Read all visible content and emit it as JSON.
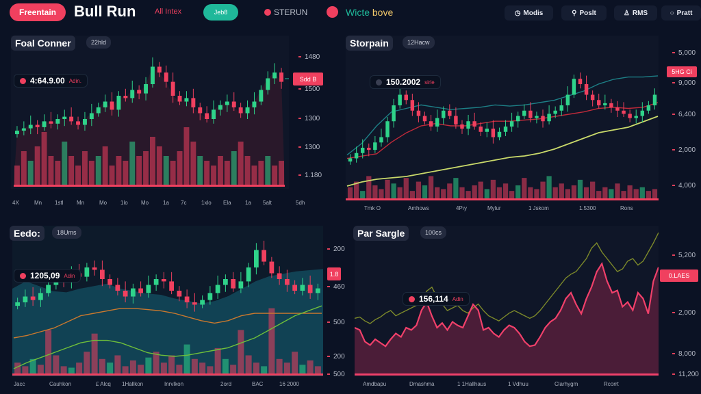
{
  "header": {
    "brand_pill": "Freentain",
    "title": "Bull Run",
    "subtitle": "All Intex",
    "teal_pill": "Jeb8",
    "ticker1": "STERUN",
    "ticker2_a": "Wicte",
    "ticker2_b": "bove",
    "nav": [
      {
        "icon": "clock-icon",
        "label": "Modis"
      },
      {
        "icon": "link-icon",
        "label": "Poslt"
      },
      {
        "icon": "user-icon",
        "label": "RMS"
      },
      {
        "icon": "circle-icon",
        "label": "Pratt"
      }
    ]
  },
  "colors": {
    "up": "#2fd38a",
    "down": "#f0405f",
    "accent_pink": "#f0405f",
    "teal": "#1fb89a",
    "bg": "#0b1224"
  },
  "panels": [
    {
      "title": "Foal Conner",
      "tag": "22hld",
      "info_value": "4:64.9.00",
      "info_sub": "Adin.",
      "price_tag": "Sdd B",
      "y_labels": [
        "1480",
        "1500",
        "1300",
        "1300",
        "1.180"
      ],
      "x_labels": [
        "4X",
        "Mn",
        "1stl",
        "Mn",
        "Mo",
        "1lo",
        "Mo",
        "1a",
        "7c",
        "1xlo",
        "Ela",
        "1a",
        "5alt",
        "5dh"
      ],
      "chart_data": {
        "type": "candlestick",
        "ylim": [
          0,
          100
        ],
        "closes": [
          30,
          32,
          35,
          33,
          38,
          36,
          40,
          42,
          38,
          35,
          40,
          45,
          50,
          55,
          48,
          60,
          58,
          65,
          62,
          70,
          85,
          80,
          72,
          60,
          55,
          58,
          50,
          45,
          40,
          48,
          52,
          55,
          50,
          45,
          50,
          55,
          65,
          75,
          80,
          72
        ],
        "volumes": [
          20,
          35,
          25,
          40,
          55,
          30,
          25,
          45,
          30,
          20,
          35,
          25,
          30,
          40,
          20,
          30,
          25,
          45,
          30,
          35,
          50,
          40,
          30,
          25,
          35,
          60,
          45,
          30,
          25,
          20,
          30,
          25,
          35,
          45,
          30,
          20,
          25,
          30,
          20,
          25
        ]
      }
    },
    {
      "title": "Storpain",
      "tag": "12Hacw",
      "info_value": "150.2002",
      "info_sub": "sirle",
      "price_tag": "5HG Ci",
      "y_labels": [
        "5,000",
        "9,000",
        "6,400",
        "2,000",
        "4,000"
      ],
      "x_labels": [
        "Tmk O",
        "Amhows",
        "4Pıy",
        "Mylur",
        "1 Jskom",
        "1.5300",
        "Rons"
      ],
      "chart_data": {
        "type": "candlestick",
        "ylim": [
          0,
          100
        ],
        "closes": [
          10,
          15,
          20,
          18,
          25,
          30,
          45,
          60,
          70,
          65,
          55,
          50,
          45,
          40,
          48,
          55,
          50,
          42,
          38,
          45,
          40,
          35,
          38,
          30,
          35,
          40,
          45,
          50,
          55,
          48,
          50,
          45,
          52,
          55,
          60,
          70,
          85,
          80,
          70,
          65,
          60,
          62,
          58,
          55,
          52,
          48,
          50,
          55,
          60,
          70
        ],
        "ma_fast": [
          15,
          25,
          40,
          52,
          55,
          58,
          56,
          54,
          55,
          56,
          58,
          57,
          58,
          60,
          62,
          66,
          70,
          76,
          80,
          82,
          82,
          83
        ],
        "ma_slow": [
          5,
          8,
          10,
          11,
          12,
          14,
          16,
          18,
          20,
          22,
          24,
          26,
          27,
          29,
          32,
          36,
          40,
          44,
          46,
          48,
          52,
          56
        ],
        "ma_red": [
          12,
          14,
          16,
          26,
          34,
          40,
          42,
          40,
          40,
          42,
          44,
          44,
          45,
          46,
          48,
          50,
          52,
          55,
          56,
          55,
          56,
          60
        ],
        "volumes": [
          30,
          45,
          20,
          60,
          35,
          25,
          50,
          40,
          30,
          55,
          20,
          45,
          35,
          60,
          30,
          25,
          40,
          55,
          30,
          20,
          35,
          45,
          25,
          50,
          30,
          40,
          20,
          35,
          55,
          30,
          25,
          45,
          60,
          30,
          40,
          25,
          35,
          50,
          30,
          45,
          20,
          30,
          25,
          40,
          20,
          35,
          25,
          30,
          20,
          25
        ]
      }
    },
    {
      "title": "Eedo:",
      "tag": "18Ums",
      "info_value": "1205,09",
      "info_sub": "Adin",
      "price_tag": "1.8",
      "y_labels": [
        "200",
        "460",
        "500",
        "200",
        "500"
      ],
      "x_labels": [
        "Jacc",
        "Cauhkon",
        "£ Alcq",
        "1Hallkon",
        "Inrvlkon",
        "2ord",
        "BAC",
        "16 2000"
      ],
      "chart_data": {
        "type": "candlestick",
        "ylim": [
          0,
          100
        ],
        "closes": [
          40,
          45,
          42,
          48,
          55,
          60,
          58,
          65,
          62,
          70,
          68,
          60,
          55,
          50,
          45,
          52,
          48,
          55,
          60,
          58,
          50,
          45,
          40,
          38,
          42,
          48,
          55,
          60,
          52,
          58,
          70,
          85,
          75,
          65,
          60,
          55,
          50,
          55,
          48,
          52
        ],
        "area": [
          60,
          66,
          62,
          58,
          57,
          60,
          62,
          64,
          60,
          58,
          56,
          55,
          52,
          50,
          48,
          50,
          54,
          60,
          66,
          70,
          72,
          74,
          75,
          76
        ],
        "ma_orange": [
          20,
          22,
          25,
          28,
          33,
          38,
          40,
          42,
          44,
          44,
          43,
          42,
          40,
          37,
          34,
          32,
          34,
          38,
          40,
          40,
          40,
          40,
          40,
          40
        ],
        "ma_green": [
          -5,
          0,
          4,
          8,
          12,
          16,
          18,
          18,
          16,
          12,
          8,
          6,
          5,
          6,
          8,
          10,
          12,
          16,
          20,
          26,
          32,
          38,
          42,
          46
        ],
        "volumes": [
          15,
          10,
          20,
          12,
          60,
          25,
          10,
          8,
          15,
          30,
          55,
          20,
          15,
          25,
          10,
          18,
          12,
          22,
          30,
          15,
          25,
          12,
          40,
          20,
          15,
          10,
          35,
          20,
          12,
          60,
          25,
          15,
          10,
          90,
          20,
          15,
          30,
          12,
          18,
          10
        ]
      }
    },
    {
      "title": "Par Sargle",
      "tag": "100cs",
      "info_value": "156,114",
      "info_sub": "Adin",
      "price_tag": "0.LAES",
      "y_labels": [
        "5,200",
        "2,000",
        "8,000",
        "11,200"
      ],
      "x_labels": [
        "Amdbapu",
        "Dmashma",
        "1 1Hallhaus",
        "1 Vdhuu",
        "Clarhygm",
        "Rcorrt"
      ],
      "chart_data": {
        "type": "line",
        "ylim": [
          0,
          100
        ],
        "pink": [
          30,
          28,
          18,
          15,
          20,
          17,
          14,
          20,
          25,
          22,
          30,
          28,
          32,
          45,
          52,
          40,
          30,
          34,
          28,
          35,
          32,
          30,
          40,
          50,
          45,
          28,
          30,
          25,
          22,
          28,
          32,
          30,
          25,
          18,
          14,
          15,
          22,
          30,
          35,
          38,
          45,
          55,
          60,
          50,
          42,
          55,
          65,
          78,
          85,
          70,
          60,
          62,
          48,
          52,
          45,
          60,
          55,
          42,
          70,
          82
        ],
        "olive": [
          34,
          35,
          32,
          30,
          33,
          35,
          38,
          40,
          36,
          38,
          40,
          42,
          44,
          48,
          55,
          58,
          50,
          45,
          40,
          42,
          44,
          40,
          38,
          42,
          45,
          40,
          36,
          34,
          32,
          35,
          38,
          40,
          38,
          36,
          34,
          36,
          40,
          45,
          50,
          55,
          60,
          65,
          68,
          70,
          75,
          80,
          88,
          92,
          85,
          80,
          75,
          70,
          72,
          78,
          80,
          75,
          78,
          85,
          92,
          100
        ]
      }
    }
  ]
}
